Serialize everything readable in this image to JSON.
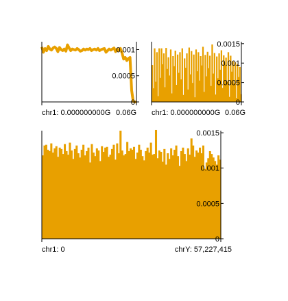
{
  "chart_data": [
    {
      "type": "line",
      "panel": "top-left",
      "color": "#e8a000",
      "xlabel_left": "chr1: 0.000000000G",
      "xlabel_right": "0.06G",
      "y_ticks": [
        {
          "value": 0.001,
          "label": "0.001"
        },
        {
          "value": 0.0005,
          "label": "0.0005"
        },
        {
          "value": 0,
          "label": "0"
        }
      ],
      "ylim": [
        0,
        0.00115
      ],
      "x": [
        0,
        1,
        2,
        3,
        4,
        5,
        6,
        7,
        8,
        9,
        10,
        11,
        12,
        13,
        14,
        15,
        16,
        17,
        18,
        19,
        20,
        21,
        22,
        23,
        24,
        25,
        26,
        27,
        28,
        29,
        30,
        31,
        32,
        33,
        34,
        35,
        36,
        37,
        38,
        39,
        40,
        41,
        42,
        43,
        44,
        45,
        46,
        47,
        48,
        49,
        50,
        51,
        52,
        53,
        54,
        55,
        56,
        57,
        58,
        59
      ],
      "values": [
        0.00105,
        0.00095,
        0.00102,
        0.00098,
        0.00106,
        0.00101,
        0.00099,
        0.00103,
        0.00105,
        0.00102,
        0.00096,
        0.00104,
        0.001,
        0.00098,
        0.00101,
        0.00097,
        0.00109,
        0.00103,
        0.00098,
        0.00101,
        0.001,
        0.00099,
        0.00102,
        0.001,
        0.00097,
        0.00098,
        0.00101,
        0.00099,
        0.00101,
        0.001,
        0.00102,
        0.00098,
        0.001,
        0.00101,
        0.00099,
        0.00102,
        0.00098,
        0.001,
        0.00101,
        0.00102,
        0.00095,
        0.00098,
        0.00101,
        0.00099,
        0.00101,
        0.00103,
        0.00096,
        0.00101,
        0.00098,
        0.00102,
        0.00094,
        0.00082,
        0.00085,
        0.00079,
        0.00083,
        0.00085,
        0.00022,
        1e-05,
        0,
        0
      ]
    },
    {
      "type": "area",
      "panel": "top-right",
      "color": "#e8a000",
      "xlabel_left": "chr1: 0.000000000G",
      "xlabel_right": "0.06G",
      "y_ticks": [
        {
          "value": 0.0015,
          "label": "0.0015"
        },
        {
          "value": 0.001,
          "label": "0.001"
        },
        {
          "value": 0.0005,
          "label": "0.0005"
        },
        {
          "value": 0,
          "label": "0"
        }
      ],
      "ylim": [
        0,
        0.00155
      ],
      "values": [
        0.00095,
        0.00035,
        0.00138,
        0.00052,
        0.00128,
        0.00015,
        0.00138,
        0.00062,
        0.00138,
        0.00097,
        0.00125,
        0.00038,
        0.00139,
        0.00085,
        0.00115,
        0.00068,
        0.00135,
        0.00022,
        0.00118,
        0.00092,
        0.00132,
        0.00044,
        0.00122,
        0.00075,
        0.00128,
        0.00058,
        0.00138,
        0.00018,
        0.00112,
        0.00088,
        0.00125,
        0.00032,
        0.0014,
        0.00071,
        0.00131,
        0.00049,
        0.00122,
        0.00012,
        0.00135,
        0.00079,
        0.00128,
        0.00055,
        0.00118,
        0.00094,
        0.00142,
        0.00026,
        0.00121,
        0.00066,
        0.00129,
        0.00087,
        0.00119,
        0.00041,
        0.00148,
        0.00073,
        0.00126,
        0.00019,
        0.00117,
        0.00061,
        0.00125,
        0.00083,
        0.00133,
        0.00036,
        0.0012,
        0.00096,
        0.00114,
        0.00052,
        0.00128,
        0.00013,
        0.00119,
        0.00078,
        0.00105,
        0.00048,
        0.00102,
        0.0001,
        0.00098,
        0.00064,
        0.0009,
        0.0002
      ]
    },
    {
      "type": "area",
      "panel": "bottom",
      "color": "#e8a000",
      "xlabel_left": "chr1: 0",
      "xlabel_right": "chrY: 57,227,415",
      "y_ticks": [
        {
          "value": 0.0015,
          "label": "0.0015"
        },
        {
          "value": 0.001,
          "label": "0.001"
        },
        {
          "value": 0.0005,
          "label": "0.0005"
        },
        {
          "value": 0,
          "label": "0"
        }
      ],
      "ylim": [
        0,
        0.00153
      ],
      "values": [
        0.00118,
        0.00132,
        0.00133,
        0.00126,
        0.00124,
        0.00135,
        0.00122,
        0.00128,
        0.00131,
        0.00116,
        0.00129,
        0.00127,
        0.0012,
        0.00134,
        0.00124,
        0.00119,
        0.00136,
        0.00125,
        0.00113,
        0.00127,
        0.00132,
        0.00121,
        0.00115,
        0.00126,
        0.00133,
        0.00118,
        0.00124,
        0.00129,
        0.00108,
        0.00134,
        0.00122,
        0.00117,
        0.00128,
        0.00125,
        0.0011,
        0.00131,
        0.00123,
        0.00129,
        0.0013,
        0.00116,
        0.00119,
        0.00127,
        0.00133,
        0.00112,
        0.00135,
        0.00121,
        0.00153,
        0.00125,
        0.00118,
        0.0012,
        0.00137,
        0.00124,
        0.00128,
        0.00126,
        0.0013,
        0.00113,
        0.00122,
        0.00133,
        0.00126,
        0.00117,
        0.00111,
        0.00124,
        0.00129,
        0.00122,
        0.00136,
        0.00119,
        0.0012,
        0.00154,
        0.00114,
        0.00125,
        0.00123,
        0.00109,
        0.00127,
        0.00105,
        0.00121,
        0.00113,
        0.00128,
        0.00118,
        0.00126,
        0.00132,
        0.00117,
        0.00103,
        0.00124,
        0.00129,
        0.0012,
        0.0011,
        0.00128,
        0.00119,
        0.00142,
        0.00132,
        0.00116,
        0.00125,
        0.00122,
        0.00129,
        0.00121,
        0.00132,
        0.00099,
        0.00108,
        0.00114,
        0.00124,
        0.0012,
        0.00115,
        0.0011,
        0.00105,
        0.00118,
        0.00112
      ]
    }
  ]
}
